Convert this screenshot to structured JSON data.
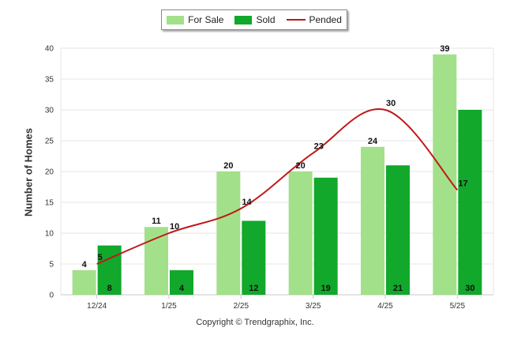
{
  "chart_data": {
    "type": "bar",
    "categories": [
      "12/24",
      "1/25",
      "2/25",
      "3/25",
      "4/25",
      "5/25"
    ],
    "series": [
      {
        "name": "For Sale",
        "type": "bar",
        "color": "#a3e08a",
        "values": [
          4,
          11,
          20,
          20,
          24,
          39
        ]
      },
      {
        "name": "Sold",
        "type": "bar",
        "color": "#11a82b",
        "values": [
          8,
          4,
          12,
          19,
          21,
          30
        ]
      },
      {
        "name": "Pended",
        "type": "line",
        "color": "#c0181a",
        "values": [
          5,
          10,
          14,
          23,
          30,
          17
        ]
      }
    ],
    "title": "",
    "xlabel": "",
    "ylabel": "Number of Homes",
    "ylim": [
      0,
      40
    ],
    "yticks": [
      0,
      5,
      10,
      15,
      20,
      25,
      30,
      35,
      40
    ],
    "grid": true,
    "legend_position": "top-center"
  },
  "footer": {
    "copyright": "Copyright © Trendgraphix, Inc."
  }
}
